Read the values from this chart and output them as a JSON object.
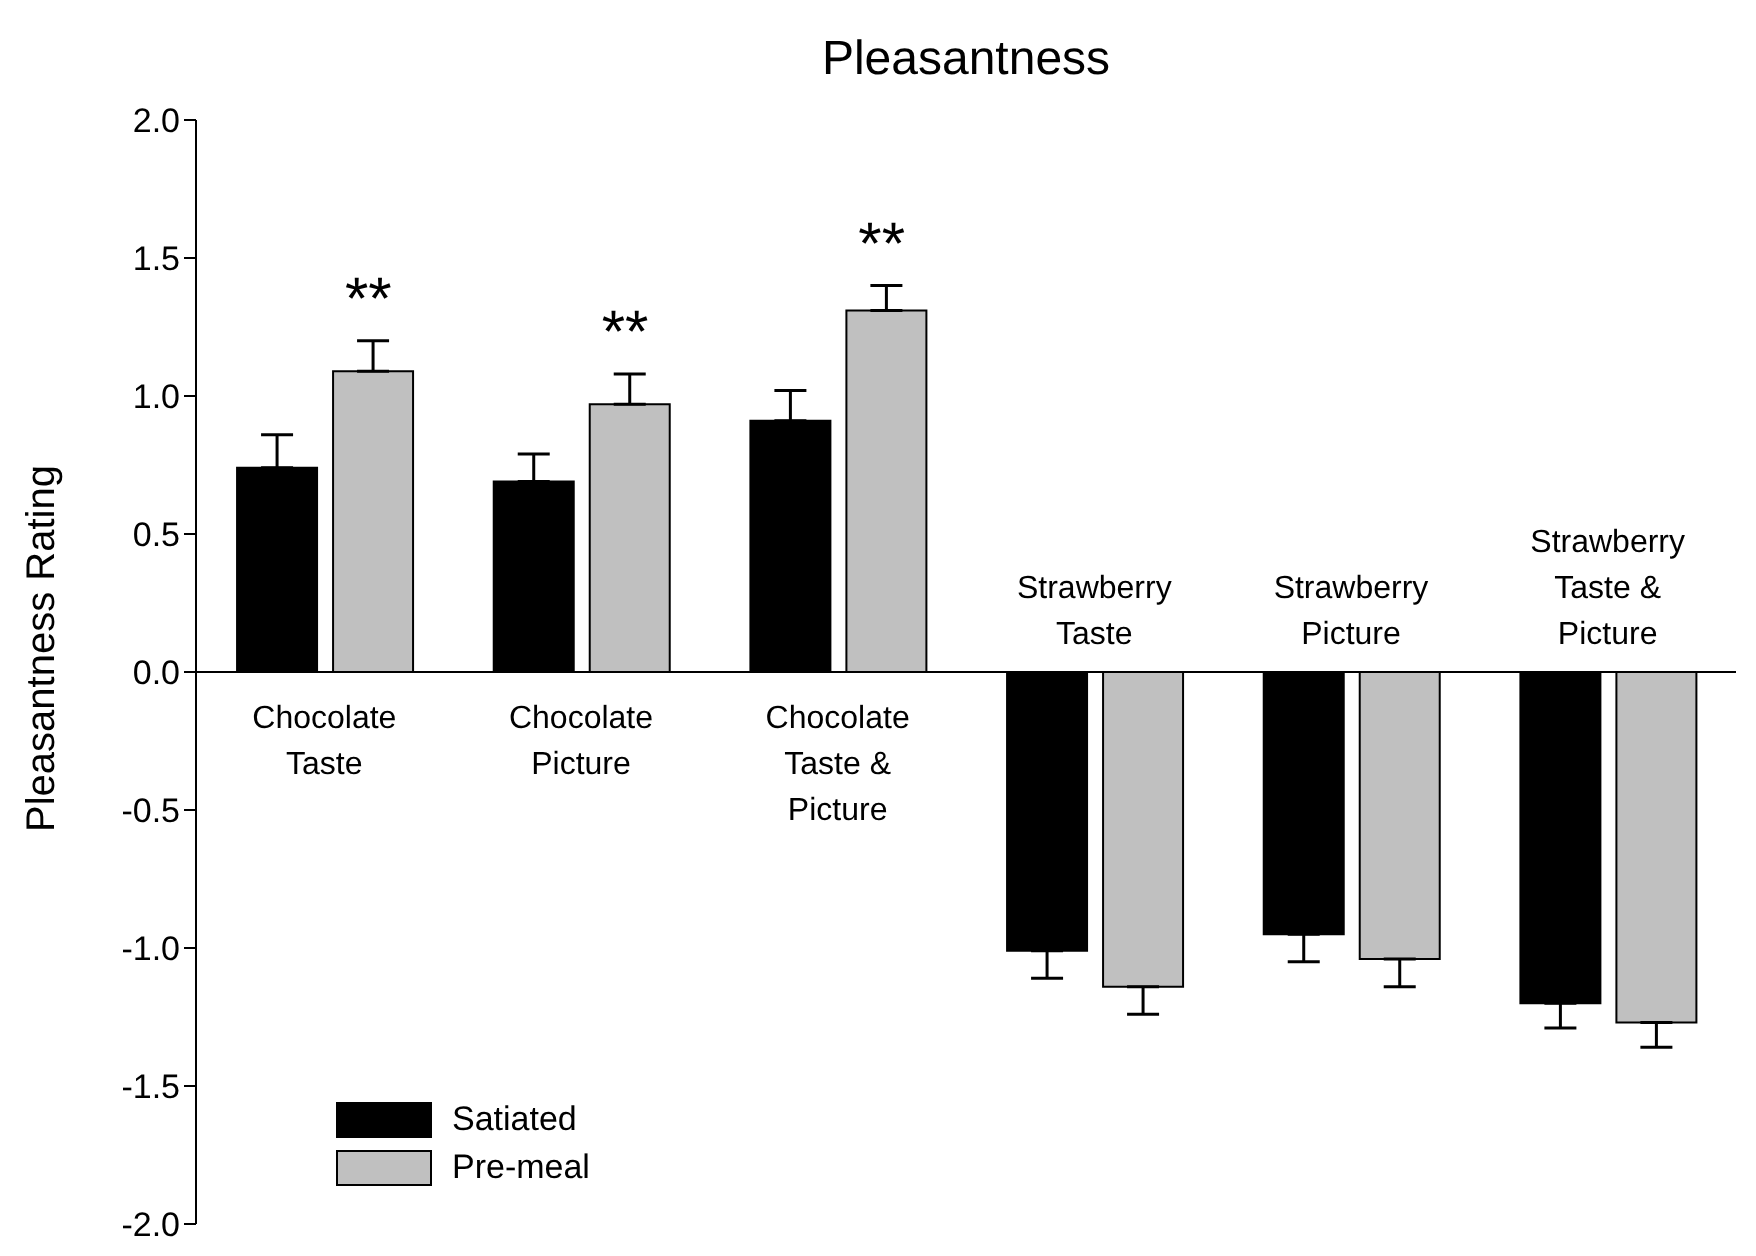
{
  "chart_data": {
    "type": "bar",
    "title": "Pleasantness",
    "ylabel": "Pleasantness Rating",
    "categories": [
      "Chocolate Taste",
      "Chocolate Picture",
      "Chocolate Taste & Picture",
      "Strawberry Taste",
      "Strawberry Picture",
      "Strawberry Taste & Picture"
    ],
    "series": [
      {
        "name": "Satiated",
        "color": "#000000",
        "values": [
          0.74,
          0.69,
          0.91,
          -1.01,
          -0.95,
          -1.2
        ],
        "errors": [
          [
            0.74,
            0.86
          ],
          [
            0.69,
            0.79
          ],
          [
            0.91,
            1.02
          ],
          [
            -1.11,
            -1.01
          ],
          [
            -1.05,
            -0.95
          ],
          [
            -1.29,
            -1.2
          ]
        ]
      },
      {
        "name": "Pre-meal",
        "color": "#c0c0c0",
        "values": [
          1.09,
          0.97,
          1.31,
          -1.14,
          -1.04,
          -1.27
        ],
        "errors": [
          [
            1.09,
            1.2
          ],
          [
            0.97,
            1.08
          ],
          [
            1.31,
            1.4
          ],
          [
            -1.24,
            -1.14
          ],
          [
            -1.14,
            -1.04
          ],
          [
            -1.36,
            -1.27
          ]
        ]
      }
    ],
    "ylim": [
      -2,
      2
    ],
    "yticks": [
      {
        "value": -2,
        "label": "-2.0"
      },
      {
        "value": -1.5,
        "label": "-1.5"
      },
      {
        "value": -1,
        "label": "-1.0"
      },
      {
        "value": -0.5,
        "label": "-0.5"
      },
      {
        "value": 0,
        "label": "0.0"
      },
      {
        "value": 0.5,
        "label": "0.5"
      },
      {
        "value": 1,
        "label": "1.0"
      },
      {
        "value": 1.5,
        "label": "1.5"
      },
      {
        "value": 2,
        "label": "2.0"
      }
    ],
    "annotations": [
      "**",
      "**",
      "**"
    ],
    "legend": "bottom left"
  }
}
